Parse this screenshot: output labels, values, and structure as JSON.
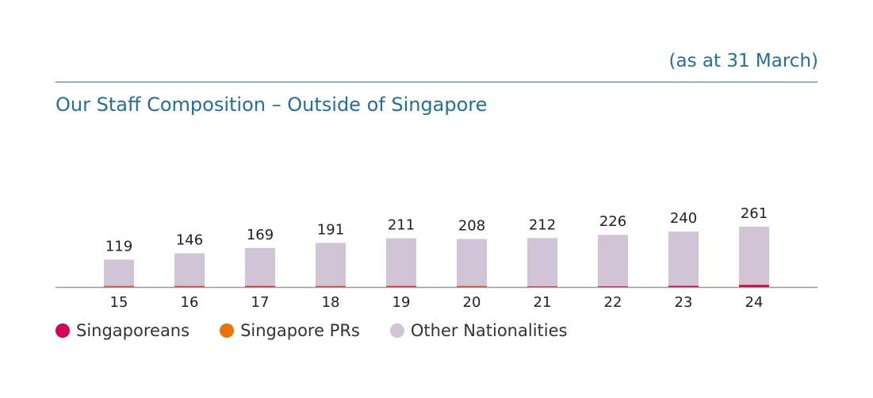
{
  "header": {
    "note": "(as at 31 March)",
    "title": "Our Staff Composition – Outside of Singapore"
  },
  "chart_data": {
    "type": "bar",
    "stacked": true,
    "categories": [
      "15",
      "16",
      "17",
      "18",
      "19",
      "20",
      "21",
      "22",
      "23",
      "24"
    ],
    "series": [
      {
        "name": "Singaporeans",
        "color": "#d6005b",
        "values": [
          2,
          2,
          3,
          2,
          3,
          2,
          2,
          3,
          5,
          9
        ]
      },
      {
        "name": "Singapore PRs",
        "color": "#ee7203",
        "values": [
          3,
          3,
          3,
          3,
          3,
          3,
          2,
          1,
          1,
          2
        ]
      },
      {
        "name": "Other Nationalities",
        "color": "#d0c4d6",
        "values": [
          114,
          141,
          163,
          186,
          205,
          203,
          208,
          222,
          234,
          250
        ]
      }
    ],
    "totals": [
      119,
      146,
      169,
      191,
      211,
      208,
      212,
      226,
      240,
      261
    ],
    "ylim": [
      0,
      261
    ],
    "grid": false,
    "legend_position": "bottom-left"
  }
}
